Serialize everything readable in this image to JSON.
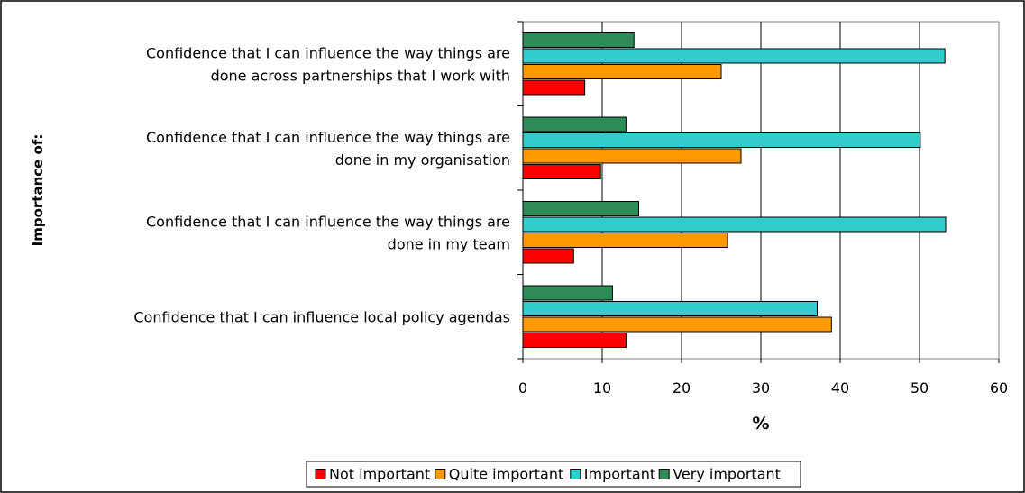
{
  "chart_data": {
    "type": "bar",
    "orientation": "horizontal",
    "categories": [
      [
        "Confidence that I can influence the way things are",
        "done across partnerships that I work with"
      ],
      [
        "Confidence that I can influence the way things are",
        "done in my organisation"
      ],
      [
        "Confidence that I can influence the way things are",
        "done in my team"
      ],
      [
        "Confidence that I can influence local policy agendas"
      ]
    ],
    "series": [
      {
        "name": "Very important",
        "color": "#2e8b57",
        "values": [
          14,
          13,
          14.6,
          11.3
        ]
      },
      {
        "name": "Important",
        "color": "#33cccc",
        "values": [
          53.2,
          50.1,
          53.3,
          37.1
        ]
      },
      {
        "name": "Quite important",
        "color": "#ff9900",
        "values": [
          25,
          27.5,
          25.8,
          38.9
        ]
      },
      {
        "name": "Not important",
        "color": "#ff0000",
        "values": [
          7.8,
          9.8,
          6.4,
          13
        ]
      }
    ],
    "legend_order": [
      "Not important",
      "Quite important",
      "Important",
      "Very important"
    ],
    "xlabel": "%",
    "ylabel": "Importance of:",
    "xlim": [
      0,
      60
    ],
    "xticks": [
      0,
      10,
      20,
      30,
      40,
      50,
      60
    ],
    "grid": true,
    "legend_position": "bottom"
  }
}
